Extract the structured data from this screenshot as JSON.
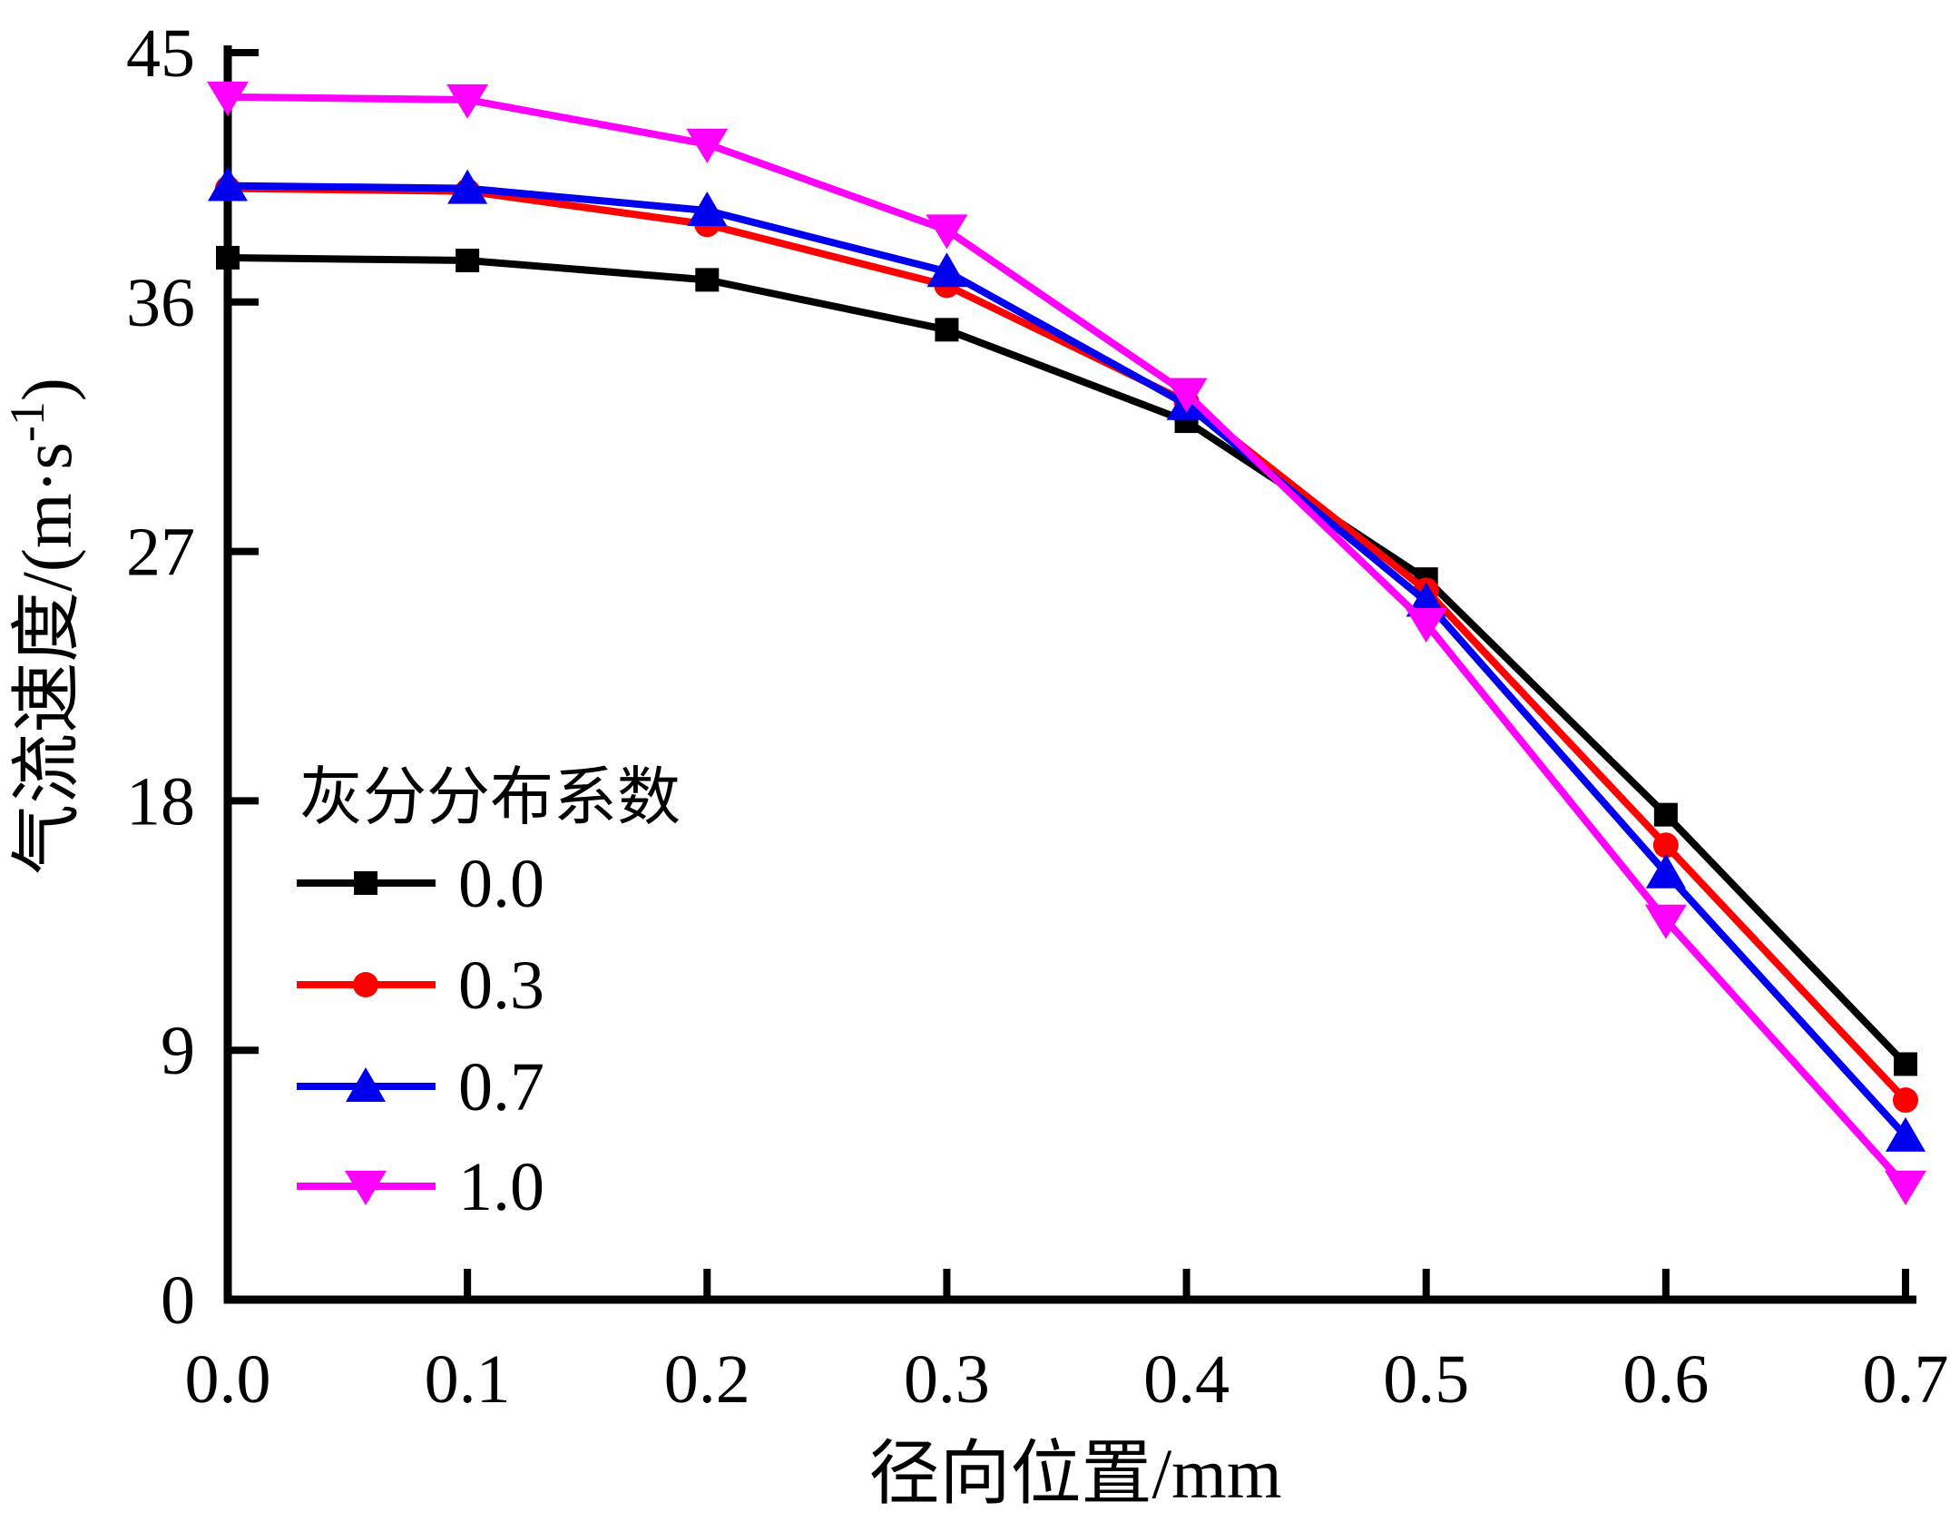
{
  "chart_data": {
    "type": "line",
    "title": "",
    "xlabel": "径向位置/mm",
    "ylabel": "气流速度/(m·s⁻¹)",
    "ylabel_parts": {
      "prefix": "气流速度/(m·s",
      "sup": "-1",
      "suffix": ")"
    },
    "xlim": [
      0.0,
      0.7
    ],
    "ylim": [
      0,
      45
    ],
    "x": [
      0.0,
      0.1,
      0.2,
      0.3,
      0.4,
      0.5,
      0.6,
      0.7
    ],
    "xtick_labels": [
      "0.0",
      "0.1",
      "0.2",
      "0.3",
      "0.4",
      "0.5",
      "0.6",
      "0.7"
    ],
    "ytick_values": [
      0,
      9,
      18,
      27,
      36,
      45
    ],
    "grid": false,
    "legend_title": "灰分分布系数",
    "legend_position": "inside lower-left",
    "series": [
      {
        "name": "0.0",
        "color": "#000000",
        "marker": "square",
        "values": [
          37.6,
          37.5,
          36.8,
          35.0,
          31.7,
          26.0,
          17.5,
          8.5
        ]
      },
      {
        "name": "0.3",
        "color": "#ff0000",
        "marker": "circle",
        "values": [
          40.1,
          40.0,
          38.8,
          36.6,
          32.4,
          25.6,
          16.4,
          7.2
        ]
      },
      {
        "name": "0.7",
        "color": "#0000ee",
        "marker": "triangle-up",
        "values": [
          40.2,
          40.1,
          39.3,
          37.1,
          32.3,
          25.2,
          15.4,
          5.9
        ]
      },
      {
        "name": "1.0",
        "color": "#ff00ff",
        "marker": "triangle-down",
        "values": [
          43.4,
          43.3,
          41.7,
          38.6,
          32.7,
          24.4,
          13.7,
          4.1
        ]
      }
    ]
  }
}
